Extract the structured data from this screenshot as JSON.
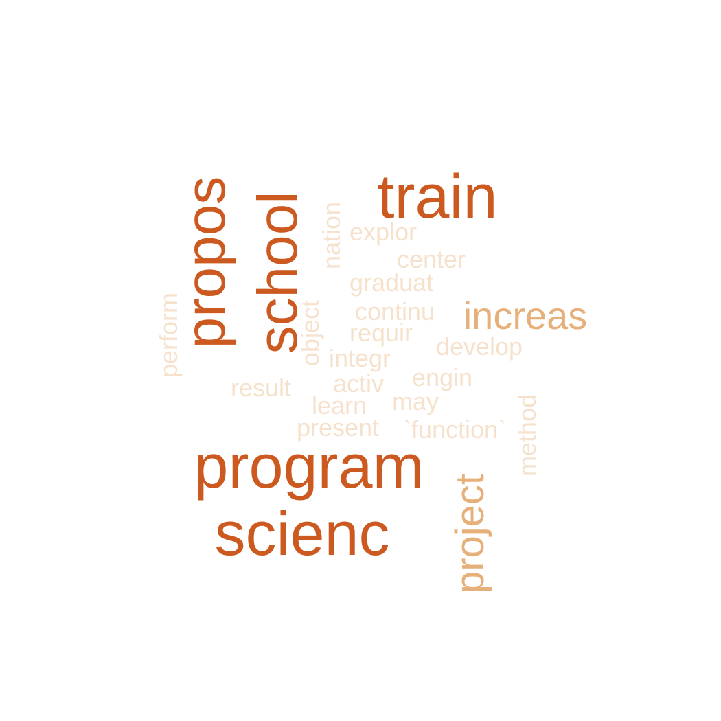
{
  "colors": {
    "large": "#cc5a20",
    "medium": "#e6b07a",
    "small": "#f6e2cc",
    "background": "#ffffff"
  },
  "words": {
    "train": "train",
    "propos": "propos",
    "school": "school",
    "program": "program",
    "scienc": "scienc",
    "increas": "increas",
    "project": "project",
    "explor": "explor",
    "center": "center",
    "graduat": "graduat",
    "continu": "continu",
    "requir": "requir",
    "develop": "develop",
    "integr": "integr",
    "activ": "activ",
    "engin": "engin",
    "result": "result",
    "learn": "learn",
    "may": "may",
    "present": "present",
    "function": "`function`",
    "nation": "nation",
    "object": "object",
    "perform": "perform",
    "method": "method"
  }
}
